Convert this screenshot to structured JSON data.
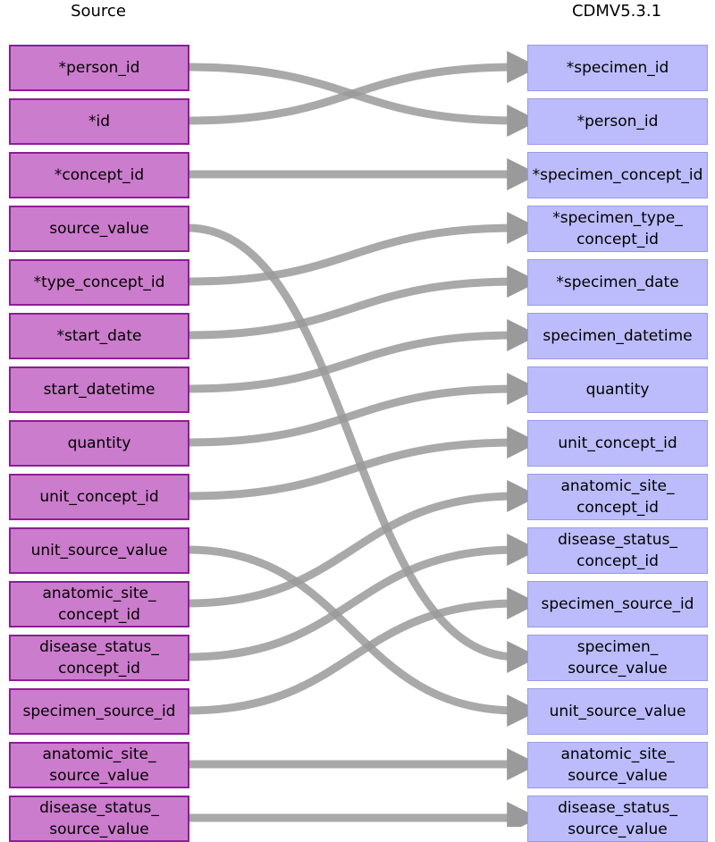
{
  "headers": {
    "source": "Source",
    "target": "CDMV5.3.1"
  },
  "colors": {
    "source_fill": "#cc7ccc",
    "source_border": "#8c1e96",
    "target_fill": "#bcbcfc",
    "link": "#9a9a9a"
  },
  "source_fields": [
    "*person_id",
    "*id",
    "*concept_id",
    "source_value",
    "*type_concept_id",
    "*start_date",
    "start_datetime",
    "quantity",
    "unit_concept_id",
    "unit_source_value",
    "anatomic_site_\nconcept_id",
    "disease_status_\nconcept_id",
    "specimen_source_id",
    "anatomic_site_\nsource_value",
    "disease_status_\nsource_value"
  ],
  "target_fields": [
    "*specimen_id",
    "*person_id",
    "*specimen_concept_id",
    "*specimen_type_\nconcept_id",
    "*specimen_date",
    "specimen_datetime",
    "quantity",
    "unit_concept_id",
    "anatomic_site_\nconcept_id",
    "disease_status_\nconcept_id",
    "specimen_source_id",
    "specimen_\nsource_value",
    "unit_source_value",
    "anatomic_site_\nsource_value",
    "disease_status_\nsource_value"
  ],
  "mappings": [
    {
      "from": "*person_id",
      "to": "*person_id"
    },
    {
      "from": "*id",
      "to": "*specimen_id"
    },
    {
      "from": "*concept_id",
      "to": "*specimen_concept_id"
    },
    {
      "from": "source_value",
      "to": "specimen_\nsource_value"
    },
    {
      "from": "*type_concept_id",
      "to": "*specimen_type_\nconcept_id"
    },
    {
      "from": "*start_date",
      "to": "*specimen_date"
    },
    {
      "from": "start_datetime",
      "to": "specimen_datetime"
    },
    {
      "from": "quantity",
      "to": "quantity"
    },
    {
      "from": "unit_concept_id",
      "to": "unit_concept_id"
    },
    {
      "from": "unit_source_value",
      "to": "unit_source_value"
    },
    {
      "from": "anatomic_site_\nconcept_id",
      "to": "anatomic_site_\nconcept_id"
    },
    {
      "from": "disease_status_\nconcept_id",
      "to": "disease_status_\nconcept_id"
    },
    {
      "from": "specimen_source_id",
      "to": "specimen_source_id"
    },
    {
      "from": "anatomic_site_\nsource_value",
      "to": "anatomic_site_\nsource_value"
    },
    {
      "from": "disease_status_\nsource_value",
      "to": "disease_status_\nsource_value"
    }
  ]
}
